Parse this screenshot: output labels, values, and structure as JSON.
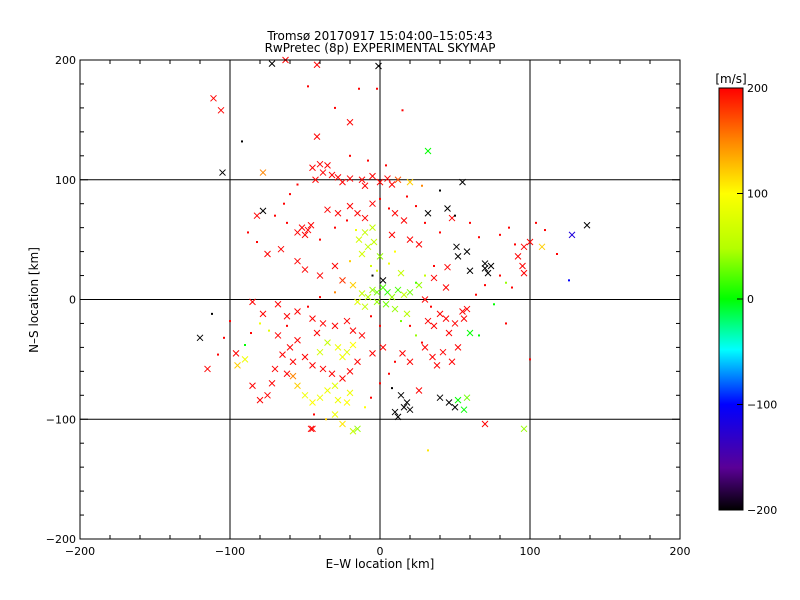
{
  "chart_data": {
    "type": "scatter",
    "title": "Tromsø 20170917 15:04:00–15:05:43",
    "subtitle": "RwPretec (8p) EXPERIMENTAL SKYMAP",
    "xlabel": "E–W location [km]",
    "ylabel": "N–S location [km]",
    "xlim": [
      -200,
      200
    ],
    "ylim": [
      -200,
      200
    ],
    "xticks": [
      -200,
      -100,
      0,
      100,
      200
    ],
    "yticks": [
      -200,
      -100,
      0,
      100,
      200
    ],
    "gridlines_x": [
      -100,
      0,
      100
    ],
    "gridlines_y": [
      -100,
      0,
      100
    ],
    "colorbar": {
      "label": "[m/s]",
      "min": -200,
      "max": 200,
      "ticks": [
        200,
        100,
        0,
        -100,
        -200
      ]
    },
    "marker_styles": [
      "x",
      "dot"
    ],
    "points": [
      [
        -111,
        168,
        200,
        "x"
      ],
      [
        -106,
        158,
        200,
        "x"
      ],
      [
        -72,
        197,
        -200,
        "x"
      ],
      [
        -63,
        200,
        200,
        "x"
      ],
      [
        -42,
        196,
        200,
        "x"
      ],
      [
        -1,
        195,
        -200,
        "x"
      ],
      [
        -92,
        132,
        -200,
        "dot"
      ],
      [
        -42,
        136,
        200,
        "x"
      ],
      [
        -20,
        148,
        200,
        "x"
      ],
      [
        15,
        158,
        200,
        "dot"
      ],
      [
        32,
        124,
        0,
        "x"
      ],
      [
        -105,
        106,
        -200,
        "x"
      ],
      [
        -78,
        106,
        150,
        "x"
      ],
      [
        -45,
        110,
        200,
        "x"
      ],
      [
        -40,
        113,
        200,
        "x"
      ],
      [
        -35,
        112,
        200,
        "x"
      ],
      [
        -38,
        106,
        200,
        "x"
      ],
      [
        -32,
        104,
        200,
        "x"
      ],
      [
        -28,
        102,
        200,
        "x"
      ],
      [
        -43,
        100,
        200,
        "x"
      ],
      [
        -25,
        98,
        200,
        "x"
      ],
      [
        -20,
        101,
        200,
        "x"
      ],
      [
        -12,
        100,
        200,
        "x"
      ],
      [
        -5,
        103,
        200,
        "x"
      ],
      [
        -10,
        95,
        200,
        "x"
      ],
      [
        0,
        98,
        200,
        "x"
      ],
      [
        5,
        101,
        200,
        "x"
      ],
      [
        8,
        96,
        200,
        "x"
      ],
      [
        12,
        100,
        170,
        "x"
      ],
      [
        20,
        98,
        120,
        "x"
      ],
      [
        28,
        95,
        150,
        "dot"
      ],
      [
        55,
        98,
        -200,
        "x"
      ],
      [
        40,
        91,
        -200,
        "dot"
      ],
      [
        -78,
        74,
        -200,
        "x"
      ],
      [
        -82,
        70,
        200,
        "x"
      ],
      [
        -48,
        58,
        200,
        "x"
      ],
      [
        -50,
        54,
        200,
        "x"
      ],
      [
        -52,
        60,
        200,
        "x"
      ],
      [
        -46,
        62,
        200,
        "x"
      ],
      [
        -55,
        56,
        200,
        "x"
      ],
      [
        -35,
        75,
        200,
        "x"
      ],
      [
        -28,
        72,
        200,
        "x"
      ],
      [
        -20,
        78,
        200,
        "x"
      ],
      [
        -15,
        72,
        200,
        "x"
      ],
      [
        -10,
        68,
        200,
        "x"
      ],
      [
        -5,
        80,
        200,
        "x"
      ],
      [
        10,
        72,
        200,
        "x"
      ],
      [
        16,
        66,
        200,
        "x"
      ],
      [
        32,
        72,
        -200,
        "x"
      ],
      [
        48,
        68,
        200,
        "x"
      ],
      [
        45,
        76,
        -200,
        "x"
      ],
      [
        -5,
        60,
        60,
        "x"
      ],
      [
        -10,
        56,
        60,
        "x"
      ],
      [
        -14,
        50,
        70,
        "x"
      ],
      [
        -8,
        44,
        60,
        "x"
      ],
      [
        -4,
        48,
        60,
        "x"
      ],
      [
        -12,
        38,
        70,
        "x"
      ],
      [
        0,
        36,
        40,
        "x"
      ],
      [
        8,
        54,
        200,
        "x"
      ],
      [
        20,
        50,
        200,
        "x"
      ],
      [
        26,
        46,
        200,
        "x"
      ],
      [
        51,
        44,
        -200,
        "x"
      ],
      [
        52,
        36,
        -200,
        "x"
      ],
      [
        58,
        40,
        -200,
        "x"
      ],
      [
        45,
        27,
        200,
        "x"
      ],
      [
        60,
        24,
        -200,
        "x"
      ],
      [
        70,
        30,
        -200,
        "x"
      ],
      [
        70,
        26,
        -200,
        "x"
      ],
      [
        72,
        22,
        -200,
        "x"
      ],
      [
        74,
        28,
        -200,
        "x"
      ],
      [
        96,
        44,
        200,
        "x"
      ],
      [
        100,
        48,
        200,
        "x"
      ],
      [
        92,
        36,
        200,
        "x"
      ],
      [
        95,
        28,
        200,
        "x"
      ],
      [
        108,
        44,
        120,
        "x"
      ],
      [
        96,
        22,
        200,
        "x"
      ],
      [
        128,
        54,
        -120,
        "x"
      ],
      [
        138,
        62,
        -200,
        "x"
      ],
      [
        -66,
        42,
        200,
        "x"
      ],
      [
        -75,
        38,
        200,
        "x"
      ],
      [
        -55,
        32,
        200,
        "x"
      ],
      [
        -50,
        25,
        200,
        "x"
      ],
      [
        -40,
        20,
        200,
        "x"
      ],
      [
        -30,
        28,
        200,
        "x"
      ],
      [
        -25,
        16,
        180,
        "x"
      ],
      [
        -18,
        12,
        120,
        "x"
      ],
      [
        -12,
        5,
        60,
        "x"
      ],
      [
        -8,
        2,
        50,
        "x"
      ],
      [
        -5,
        8,
        40,
        "x"
      ],
      [
        -2,
        6,
        30,
        "x"
      ],
      [
        2,
        10,
        20,
        "x"
      ],
      [
        5,
        6,
        10,
        "x"
      ],
      [
        8,
        2,
        40,
        "x"
      ],
      [
        12,
        8,
        20,
        "x"
      ],
      [
        16,
        4,
        60,
        "x"
      ],
      [
        20,
        6,
        30,
        "x"
      ],
      [
        26,
        12,
        40,
        "x"
      ],
      [
        30,
        0,
        200,
        "x"
      ],
      [
        -15,
        -2,
        80,
        "x"
      ],
      [
        -10,
        -6,
        60,
        "x"
      ],
      [
        -2,
        -2,
        40,
        "x"
      ],
      [
        4,
        -4,
        30,
        "x"
      ],
      [
        10,
        -8,
        40,
        "x"
      ],
      [
        18,
        -12,
        50,
        "x"
      ],
      [
        2,
        16,
        -200,
        "x"
      ],
      [
        -5,
        20,
        -200,
        "dot"
      ],
      [
        14,
        22,
        60,
        "x"
      ],
      [
        36,
        18,
        200,
        "x"
      ],
      [
        44,
        10,
        200,
        "x"
      ],
      [
        -85,
        -2,
        200,
        "x"
      ],
      [
        -68,
        -4,
        200,
        "x"
      ],
      [
        -78,
        -12,
        200,
        "x"
      ],
      [
        -62,
        -14,
        200,
        "x"
      ],
      [
        -55,
        -10,
        200,
        "x"
      ],
      [
        -45,
        -16,
        200,
        "x"
      ],
      [
        -38,
        -20,
        200,
        "x"
      ],
      [
        -30,
        -22,
        200,
        "x"
      ],
      [
        -22,
        -18,
        200,
        "x"
      ],
      [
        -18,
        -26,
        200,
        "x"
      ],
      [
        -12,
        -30,
        200,
        "x"
      ],
      [
        -42,
        -28,
        200,
        "x"
      ],
      [
        -55,
        -34,
        200,
        "x"
      ],
      [
        -60,
        -40,
        200,
        "x"
      ],
      [
        -65,
        -46,
        200,
        "x"
      ],
      [
        -58,
        -52,
        200,
        "x"
      ],
      [
        -50,
        -48,
        200,
        "x"
      ],
      [
        -45,
        -55,
        200,
        "x"
      ],
      [
        -38,
        -58,
        200,
        "x"
      ],
      [
        -32,
        -62,
        200,
        "x"
      ],
      [
        -25,
        -66,
        200,
        "x"
      ],
      [
        -20,
        -60,
        200,
        "x"
      ],
      [
        -15,
        -52,
        200,
        "x"
      ],
      [
        -28,
        -40,
        90,
        "x"
      ],
      [
        -22,
        -44,
        80,
        "x"
      ],
      [
        -18,
        -38,
        100,
        "x"
      ],
      [
        -25,
        -48,
        90,
        "x"
      ],
      [
        -35,
        -36,
        60,
        "x"
      ],
      [
        -40,
        -44,
        70,
        "x"
      ],
      [
        -30,
        -72,
        80,
        "x"
      ],
      [
        -35,
        -76,
        90,
        "x"
      ],
      [
        -40,
        -82,
        90,
        "x"
      ],
      [
        -45,
        -86,
        100,
        "x"
      ],
      [
        -50,
        -80,
        90,
        "x"
      ],
      [
        -55,
        -72,
        120,
        "x"
      ],
      [
        -28,
        -84,
        90,
        "x"
      ],
      [
        -22,
        -86,
        100,
        "x"
      ],
      [
        -20,
        -78,
        90,
        "x"
      ],
      [
        -30,
        -96,
        90,
        "x"
      ],
      [
        -25,
        -104,
        110,
        "x"
      ],
      [
        -15,
        -108,
        40,
        "x"
      ],
      [
        -46,
        -108,
        200,
        "x"
      ],
      [
        -75,
        -80,
        200,
        "x"
      ],
      [
        -80,
        -84,
        200,
        "x"
      ],
      [
        -72,
        -70,
        200,
        "x"
      ],
      [
        -85,
        -72,
        200,
        "x"
      ],
      [
        -90,
        -50,
        90,
        "x"
      ],
      [
        -95,
        -55,
        120,
        "x"
      ],
      [
        -115,
        -58,
        200,
        "x"
      ],
      [
        -120,
        -32,
        -200,
        "x"
      ],
      [
        -112,
        -12,
        -200,
        "dot"
      ],
      [
        -90,
        -38,
        0,
        "dot"
      ],
      [
        -96,
        -45,
        200,
        "x"
      ],
      [
        -68,
        -30,
        200,
        "x"
      ],
      [
        -70,
        -58,
        200,
        "x"
      ],
      [
        -62,
        -62,
        200,
        "x"
      ],
      [
        -58,
        -64,
        150,
        "x"
      ],
      [
        -5,
        -45,
        200,
        "x"
      ],
      [
        2,
        -40,
        200,
        "x"
      ],
      [
        15,
        -45,
        200,
        "x"
      ],
      [
        20,
        -52,
        200,
        "x"
      ],
      [
        30,
        -40,
        200,
        "x"
      ],
      [
        35,
        -48,
        200,
        "x"
      ],
      [
        38,
        -55,
        200,
        "x"
      ],
      [
        42,
        -44,
        200,
        "x"
      ],
      [
        48,
        -52,
        200,
        "x"
      ],
      [
        52,
        -40,
        200,
        "x"
      ],
      [
        40,
        -12,
        200,
        "x"
      ],
      [
        44,
        -16,
        200,
        "x"
      ],
      [
        50,
        -20,
        200,
        "x"
      ],
      [
        55,
        -10,
        200,
        "x"
      ],
      [
        36,
        -22,
        200,
        "x"
      ],
      [
        32,
        -18,
        200,
        "x"
      ],
      [
        56,
        -16,
        200,
        "x"
      ],
      [
        58,
        -8,
        200,
        "x"
      ],
      [
        46,
        -28,
        200,
        "x"
      ],
      [
        60,
        -28,
        0,
        "x"
      ],
      [
        66,
        -30,
        0,
        "dot"
      ],
      [
        14,
        -80,
        -200,
        "x"
      ],
      [
        18,
        -86,
        -200,
        "x"
      ],
      [
        16,
        -90,
        -200,
        "x"
      ],
      [
        20,
        -92,
        -200,
        "x"
      ],
      [
        10,
        -94,
        -200,
        "x"
      ],
      [
        12,
        -98,
        -200,
        "x"
      ],
      [
        40,
        -82,
        -200,
        "x"
      ],
      [
        46,
        -86,
        -200,
        "x"
      ],
      [
        50,
        -90,
        -200,
        "x"
      ],
      [
        52,
        -84,
        0,
        "x"
      ],
      [
        56,
        -92,
        0,
        "x"
      ],
      [
        58,
        -82,
        30,
        "x"
      ],
      [
        26,
        -76,
        200,
        "x"
      ],
      [
        8,
        -74,
        -200,
        "dot"
      ],
      [
        70,
        -104,
        200,
        "x"
      ],
      [
        96,
        -108,
        40,
        "x"
      ],
      [
        -45,
        -108,
        200,
        "x"
      ],
      [
        -18,
        -110,
        60,
        "x"
      ],
      [
        100,
        -50,
        200,
        "dot"
      ],
      [
        32,
        -126,
        110,
        "dot"
      ],
      [
        -30,
        160,
        200,
        "dot"
      ],
      [
        -20,
        120,
        200,
        "dot"
      ],
      [
        -8,
        116,
        200,
        "dot"
      ],
      [
        4,
        112,
        200,
        "dot"
      ],
      [
        -55,
        96,
        200,
        "dot"
      ],
      [
        -60,
        88,
        200,
        "dot"
      ],
      [
        -64,
        80,
        200,
        "dot"
      ],
      [
        -70,
        70,
        200,
        "dot"
      ],
      [
        -88,
        56,
        200,
        "dot"
      ],
      [
        -82,
        48,
        200,
        "dot"
      ],
      [
        -62,
        64,
        200,
        "dot"
      ],
      [
        -40,
        50,
        200,
        "dot"
      ],
      [
        -30,
        60,
        200,
        "dot"
      ],
      [
        -22,
        66,
        200,
        "dot"
      ],
      [
        0,
        84,
        200,
        "dot"
      ],
      [
        6,
        76,
        200,
        "dot"
      ],
      [
        18,
        86,
        200,
        "dot"
      ],
      [
        24,
        78,
        200,
        "dot"
      ],
      [
        30,
        64,
        200,
        "dot"
      ],
      [
        40,
        56,
        200,
        "dot"
      ],
      [
        60,
        64,
        200,
        "dot"
      ],
      [
        66,
        52,
        200,
        "dot"
      ],
      [
        80,
        54,
        200,
        "dot"
      ],
      [
        86,
        60,
        200,
        "dot"
      ],
      [
        90,
        46,
        200,
        "dot"
      ],
      [
        104,
        64,
        200,
        "dot"
      ],
      [
        110,
        58,
        200,
        "dot"
      ],
      [
        118,
        38,
        200,
        "dot"
      ],
      [
        80,
        20,
        200,
        "dot"
      ],
      [
        88,
        10,
        200,
        "dot"
      ],
      [
        70,
        12,
        200,
        "dot"
      ],
      [
        64,
        4,
        200,
        "dot"
      ],
      [
        76,
        -4,
        0,
        "dot"
      ],
      [
        84,
        14,
        40,
        "dot"
      ],
      [
        -6,
        28,
        70,
        "dot"
      ],
      [
        -2,
        24,
        80,
        "dot"
      ],
      [
        6,
        30,
        90,
        "dot"
      ],
      [
        10,
        40,
        100,
        "dot"
      ],
      [
        -16,
        58,
        90,
        "dot"
      ],
      [
        -20,
        32,
        120,
        "dot"
      ],
      [
        -30,
        6,
        150,
        "dot"
      ],
      [
        -40,
        2,
        200,
        "dot"
      ],
      [
        -48,
        -6,
        200,
        "dot"
      ],
      [
        -62,
        -22,
        200,
        "dot"
      ],
      [
        -74,
        -26,
        80,
        "dot"
      ],
      [
        -80,
        -20,
        90,
        "dot"
      ],
      [
        -86,
        -28,
        200,
        "dot"
      ],
      [
        -100,
        -18,
        200,
        "dot"
      ],
      [
        -104,
        -32,
        200,
        "dot"
      ],
      [
        -108,
        -46,
        200,
        "dot"
      ],
      [
        -44,
        -96,
        200,
        "dot"
      ],
      [
        -36,
        -100,
        120,
        "dot"
      ],
      [
        -10,
        -90,
        100,
        "dot"
      ],
      [
        -6,
        -82,
        200,
        "dot"
      ],
      [
        0,
        -70,
        200,
        "dot"
      ],
      [
        6,
        -62,
        200,
        "dot"
      ],
      [
        10,
        -52,
        200,
        "dot"
      ],
      [
        24,
        -30,
        40,
        "dot"
      ],
      [
        28,
        -36,
        200,
        "dot"
      ],
      [
        34,
        -6,
        200,
        "dot"
      ],
      [
        20,
        -22,
        200,
        "dot"
      ],
      [
        14,
        -18,
        30,
        "dot"
      ],
      [
        0,
        -22,
        200,
        "dot"
      ],
      [
        -6,
        -14,
        200,
        "dot"
      ],
      [
        24,
        14,
        20,
        "dot"
      ],
      [
        30,
        20,
        60,
        "dot"
      ],
      [
        36,
        28,
        200,
        "dot"
      ],
      [
        -2,
        176,
        200,
        "dot"
      ],
      [
        -48,
        178,
        200,
        "dot"
      ],
      [
        -14,
        176,
        200,
        "dot"
      ],
      [
        50,
        70,
        -200,
        "dot"
      ],
      [
        84,
        -20,
        200,
        "dot"
      ],
      [
        126,
        16,
        -100,
        "dot"
      ]
    ]
  }
}
